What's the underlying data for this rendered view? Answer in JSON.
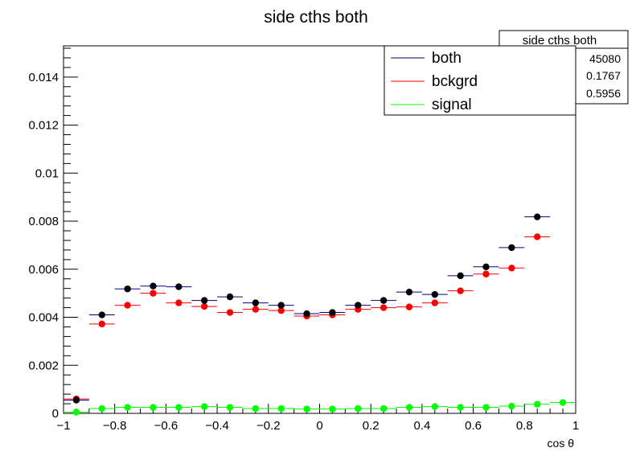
{
  "chart_data": {
    "type": "scatter",
    "title": "side cths both",
    "xlabel": "cos θ",
    "ylabel": "",
    "xlim": [
      -1,
      1
    ],
    "ylim": [
      0,
      0.0153
    ],
    "grid": false,
    "legend_position": "top-right",
    "x_ticks": [
      "−1",
      "−0.8",
      "−0.6",
      "−0.4",
      "−0.2",
      "0",
      "0.2",
      "0.4",
      "0.6",
      "0.8",
      "1"
    ],
    "y_ticks": [
      "0",
      "0.002",
      "0.004",
      "0.006",
      "0.008",
      "0.01",
      "0.012",
      "0.014"
    ],
    "bin_width": 0.1,
    "x": [
      -0.95,
      -0.85,
      -0.75,
      -0.65,
      -0.55,
      -0.45,
      -0.35,
      -0.25,
      -0.15,
      -0.05,
      0.05,
      0.15,
      0.25,
      0.35,
      0.45,
      0.55,
      0.65,
      0.75,
      0.85,
      0.95
    ],
    "series": [
      {
        "name": "both",
        "color": "#000000",
        "line_color": "#00007f",
        "values": [
          0.00055,
          0.0041,
          0.00518,
          0.0053,
          0.00527,
          0.0047,
          0.00485,
          0.0046,
          0.0045,
          0.00415,
          0.0042,
          0.0045,
          0.0047,
          0.00505,
          0.00495,
          0.00573,
          0.0061,
          0.0069,
          0.00818,
          null
        ]
      },
      {
        "name": "bckgrd",
        "color": "#ff0000",
        "line_color": "#ff0000",
        "values": [
          0.0006,
          0.00372,
          0.0045,
          0.005,
          0.0046,
          0.00445,
          0.0042,
          0.00433,
          0.00428,
          0.00405,
          0.0041,
          0.00433,
          0.0044,
          0.00443,
          0.0046,
          0.0051,
          0.0058,
          0.00605,
          0.00735,
          null
        ]
      },
      {
        "name": "signal",
        "color": "#00ff00",
        "line_color": "#00ff00",
        "values": [
          5e-05,
          0.0002,
          0.00025,
          0.00025,
          0.00025,
          0.00028,
          0.00025,
          0.0002,
          0.0002,
          0.00018,
          0.00018,
          0.0002,
          0.0002,
          0.00025,
          0.00028,
          0.00025,
          0.00025,
          0.0003,
          0.00038,
          0.00045
        ]
      }
    ]
  },
  "stats_box": {
    "title": "side cths both",
    "values": [
      "45080",
      "0.1767",
      "0.5956"
    ]
  }
}
